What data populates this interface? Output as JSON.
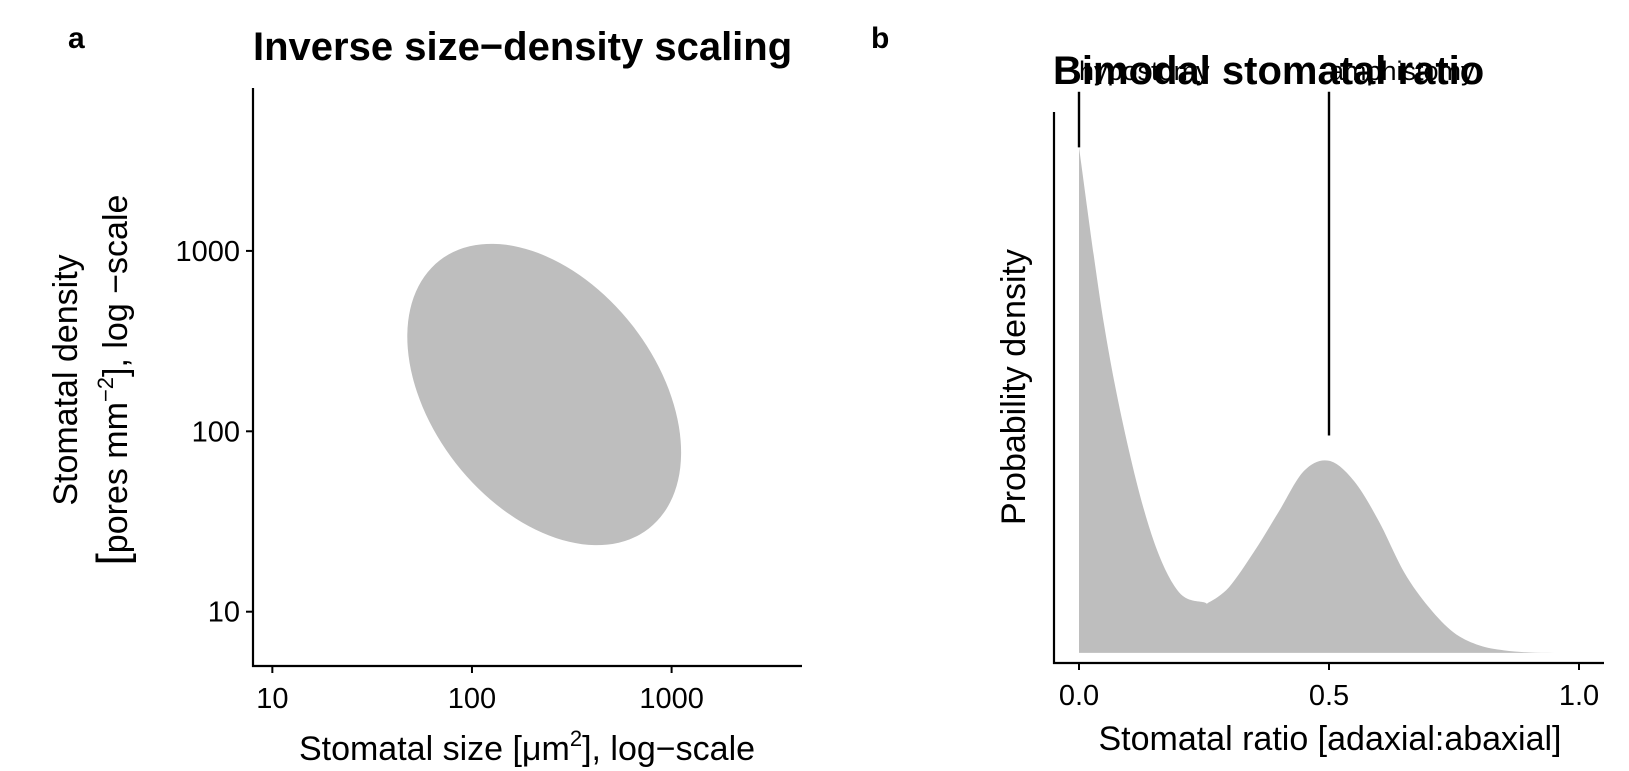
{
  "panels": {
    "a": {
      "letter": "a",
      "title": "Inverse size−density scaling",
      "xlabel_pre": "Stomatal size [μm",
      "xlabel_sup": "2",
      "xlabel_post": "], log−scale",
      "ylabel_line1": "Stomatal density",
      "ylabel_line2_pre": "pores mm",
      "ylabel_line2_sup": "−2",
      "ylabel_line2_post": "], log −scale",
      "ylabel_bracket": "["
    },
    "b": {
      "letter": "b",
      "title": "Bimodal stomatal ratio",
      "xlabel": "Stomatal ratio [adaxial:abaxial]",
      "ylabel": "Probability density"
    }
  },
  "chart_data": [
    {
      "type": "scatter",
      "title": "Inverse size−density scaling",
      "xlabel": "Stomatal size [μm2], log−scale",
      "ylabel": "Stomatal density [pores mm−2], log −scale",
      "x_scale": "log",
      "y_scale": "log",
      "xlim": [
        8,
        4500
      ],
      "ylim": [
        5,
        8000
      ],
      "xticks": [
        10,
        100,
        1000
      ],
      "xtick_labels": [
        "10",
        "100",
        "1000"
      ],
      "yticks": [
        10,
        100,
        1000
      ],
      "ytick_labels": [
        "10",
        "100",
        "1000"
      ],
      "grid": false,
      "region": {
        "shape": "ellipse",
        "center_x": 230,
        "center_y": 160,
        "fill": "#bebebe",
        "description": "shaded elliptical region, negative correlation",
        "extent_x": [
          49,
          1500
        ],
        "extent_y": [
          25,
          1100
        ]
      }
    },
    {
      "type": "area",
      "title": "Bimodal stomatal ratio",
      "xlabel": "Stomatal ratio [adaxial:abaxial]",
      "ylabel": "Probability density",
      "xlim": [
        -0.05,
        1.05
      ],
      "ylim": [
        -0.02,
        1.07
      ],
      "xticks": [
        0.0,
        0.5,
        1.0
      ],
      "xtick_labels": [
        "0.0",
        "0.5",
        "1.0"
      ],
      "grid": false,
      "fill": "#bebebe",
      "x": [
        0.0,
        0.05,
        0.1,
        0.15,
        0.2,
        0.25,
        0.26,
        0.3,
        0.35,
        0.4,
        0.45,
        0.5,
        0.55,
        0.6,
        0.65,
        0.7,
        0.75,
        0.8,
        0.85,
        0.9,
        0.95,
        1.0
      ],
      "y": [
        1.0,
        0.65,
        0.4,
        0.22,
        0.12,
        0.1,
        0.1,
        0.13,
        0.2,
        0.28,
        0.36,
        0.38,
        0.34,
        0.26,
        0.16,
        0.09,
        0.04,
        0.015,
        0.005,
        0.001,
        0.0,
        0.0
      ],
      "annotations": [
        {
          "label": "hypostomy",
          "x": 0.0,
          "line_from": 1.0,
          "line_to": 1.11
        },
        {
          "label": "amphistomy",
          "x": 0.5,
          "line_from": 0.43,
          "line_to": 1.11
        }
      ]
    }
  ]
}
